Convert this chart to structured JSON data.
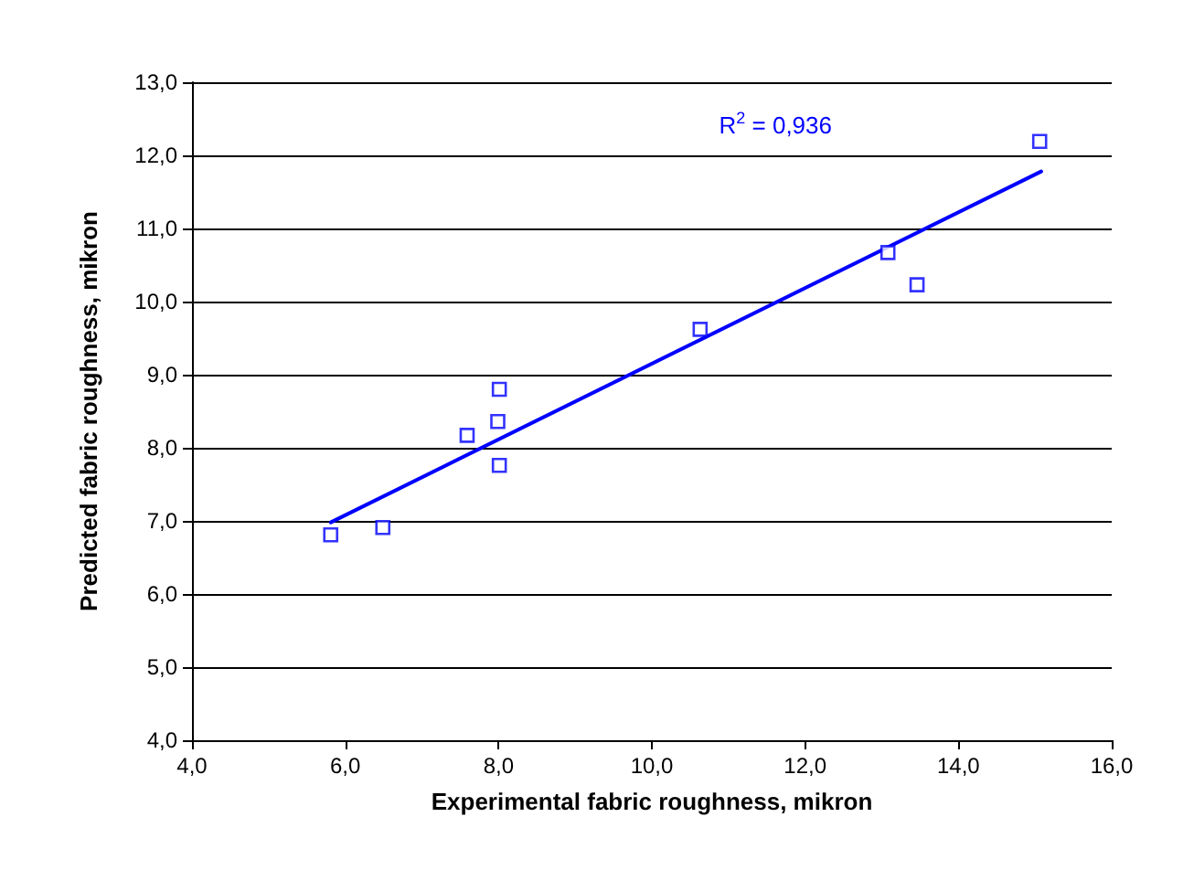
{
  "chart_data": {
    "type": "scatter",
    "xlabel": "Experimental fabric roughness, mikron",
    "ylabel": "Predicted fabric roughness, mikron",
    "annotations": [
      "R$^{2}$ = 0,936"
    ],
    "x": [
      5.81,
      6.49,
      7.59,
      8.01,
      7.99,
      8.01,
      10.63,
      13.08,
      13.46,
      15.06
    ],
    "series": [
      {
        "color": "#0000ff",
        "marker": "square",
        "values": [
          6.81,
          6.91,
          8.17,
          8.8,
          8.36,
          7.76,
          9.62,
          10.67,
          10.23,
          12.19
        ]
      },
      {
        "type": "line",
        "color": "#0000ff",
        "marker": "none",
        "x": [
          5.81,
          15.08
        ],
        "values": [
          6.98,
          11.78
        ]
      }
    ],
    "xlim": [
      4,
      16
    ],
    "xticks": [
      {
        "value": 4,
        "label": "4,0"
      },
      {
        "value": 6,
        "label": "6,0"
      },
      {
        "value": 8,
        "label": "8,0"
      },
      {
        "value": 10,
        "label": "10,0"
      },
      {
        "value": 12,
        "label": "12,0"
      },
      {
        "value": 14,
        "label": "14,0"
      },
      {
        "value": 16,
        "label": "16,0"
      }
    ],
    "ylim": [
      4,
      13
    ],
    "yticks": [
      {
        "value": 4,
        "label": "4,0"
      },
      {
        "value": 5,
        "label": "5,0"
      },
      {
        "value": 6,
        "label": "6,0"
      },
      {
        "value": 7,
        "label": "7,0"
      },
      {
        "value": 8,
        "label": "8,0"
      },
      {
        "value": 9,
        "label": "9,0"
      },
      {
        "value": 10,
        "label": "10,0"
      },
      {
        "value": 11,
        "label": "11,0"
      },
      {
        "value": 12,
        "label": "12,0"
      },
      {
        "value": 13,
        "label": "13,0"
      }
    ],
    "grid": "y"
  }
}
